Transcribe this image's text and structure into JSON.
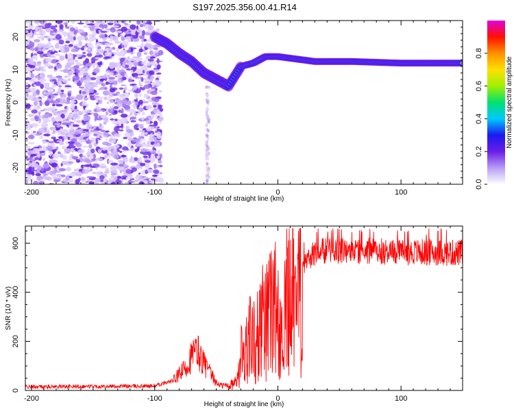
{
  "title": "S197.2025.356.00.41.R14",
  "chart_data": [
    {
      "type": "heatmap",
      "name": "spectrogram",
      "xlabel": "Height of straight line (km)",
      "ylabel": "Frequency (Hz)",
      "xlim": [
        -205,
        150
      ],
      "ylim": [
        -25,
        25
      ],
      "x_ticks": [
        -200,
        -100,
        0,
        100
      ],
      "y_ticks": [
        -20,
        -10,
        0,
        10,
        20
      ],
      "ridge": [
        {
          "x": -100,
          "y": 20
        },
        {
          "x": -90,
          "y": 18
        },
        {
          "x": -80,
          "y": 15
        },
        {
          "x": -70,
          "y": 12.5
        },
        {
          "x": -60,
          "y": 9
        },
        {
          "x": -50,
          "y": 7
        },
        {
          "x": -40,
          "y": 5
        },
        {
          "x": -35,
          "y": 8
        },
        {
          "x": -30,
          "y": 11
        },
        {
          "x": -20,
          "y": 12
        },
        {
          "x": -10,
          "y": 14
        },
        {
          "x": 0,
          "y": 14
        },
        {
          "x": 10,
          "y": 13.5
        },
        {
          "x": 30,
          "y": 12.5
        },
        {
          "x": 60,
          "y": 12.5
        },
        {
          "x": 100,
          "y": 12
        },
        {
          "x": 150,
          "y": 12
        }
      ],
      "colorbar": {
        "label": "Normalized spectral amplitude",
        "range": [
          0,
          1
        ],
        "ticks": [
          0.0,
          0.2,
          0.4,
          0.6,
          0.8
        ],
        "tick_labels": [
          "0.0",
          "0.2",
          "0.4",
          "0.6",
          "0.8"
        ],
        "colors": [
          "#ffffff",
          "#b79df5",
          "#6a1de8",
          "#1a1af0",
          "#00c8ff",
          "#00e070",
          "#a0f000",
          "#ffe000",
          "#ff9000",
          "#ff1000",
          "#e000e0"
        ]
      }
    },
    {
      "type": "line",
      "name": "snr",
      "xlabel": "Height of straight line (km)",
      "ylabel": "SNR (10 * v/v)",
      "xlim": [
        -205,
        150
      ],
      "ylim": [
        0,
        670
      ],
      "x_ticks": [
        -200,
        -100,
        0,
        100
      ],
      "y_ticks": [
        0,
        200,
        400,
        600
      ],
      "line_color": "#ff0000",
      "envelope": {
        "x": [
          -205,
          -100,
          -85,
          -75,
          -70,
          -65,
          -60,
          -55,
          -50,
          -45,
          -40,
          -35,
          -30,
          -25,
          -20,
          -15,
          -10,
          -5,
          0,
          5,
          10,
          15,
          20,
          25,
          30,
          40,
          60,
          100,
          150
        ],
        "y": [
          15,
          18,
          40,
          90,
          140,
          160,
          110,
          70,
          30,
          20,
          20,
          30,
          90,
          180,
          240,
          270,
          290,
          310,
          330,
          360,
          400,
          450,
          500,
          540,
          560,
          570,
          570,
          565,
          560
        ]
      }
    }
  ]
}
